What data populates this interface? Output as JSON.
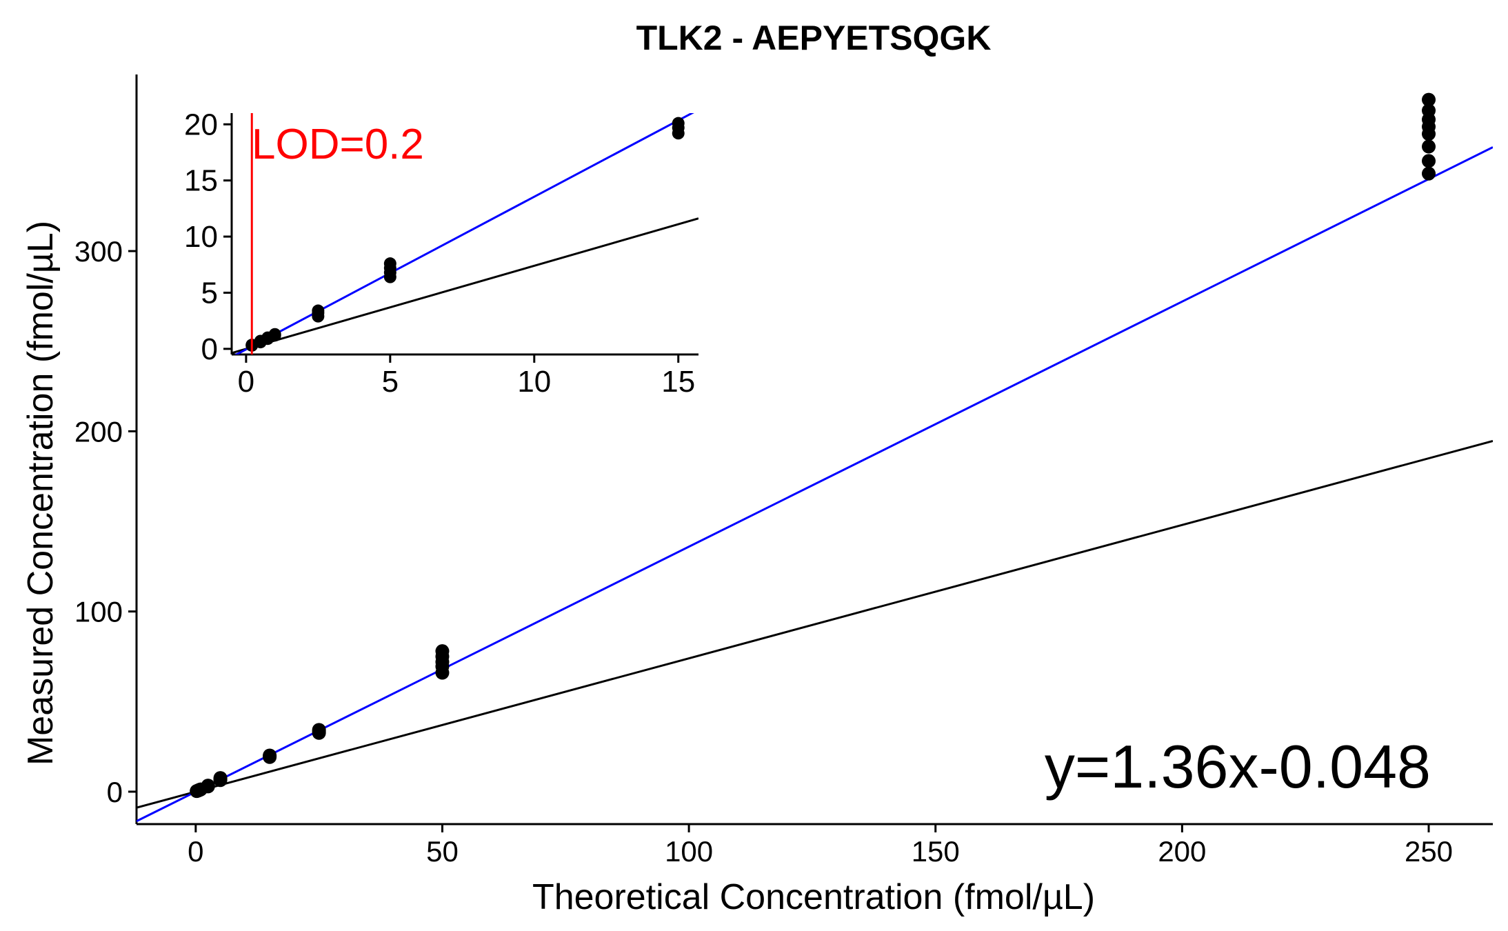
{
  "chart_data": {
    "type": "scatter",
    "title": "TLK2 - AEPYETSQGK",
    "xlabel": "Theoretical Concentration (fmol/µL)",
    "ylabel": "Measured Concentration (fmol/µL)",
    "xlim": [
      -12,
      263
    ],
    "ylim": [
      -18,
      398
    ],
    "x_ticks": [
      0,
      50,
      100,
      150,
      200,
      250
    ],
    "x_tick_labels": [
      "0",
      "50",
      "100",
      "150",
      "200",
      "250"
    ],
    "y_ticks": [
      0,
      100,
      200,
      300
    ],
    "y_tick_labels": [
      "0",
      "100",
      "200",
      "300"
    ],
    "grid": false,
    "points": {
      "x": [
        0.2,
        0.2,
        0.5,
        0.5,
        0.75,
        0.75,
        1,
        1,
        2.5,
        2.5,
        2.5,
        5,
        5,
        5,
        5,
        15,
        15,
        15,
        25,
        25,
        25,
        50,
        50,
        50,
        50,
        50,
        250,
        250,
        250,
        250,
        250,
        250,
        250,
        250
      ],
      "y": [
        0.3,
        0.35,
        0.6,
        0.7,
        0.9,
        1.0,
        1.2,
        1.3,
        2.9,
        3.2,
        3.4,
        6.4,
        6.8,
        7.2,
        7.6,
        19.2,
        19.7,
        20.1,
        32.6,
        33.4,
        34.3,
        66.0,
        69.5,
        72.0,
        75.0,
        78.0,
        343.0,
        350.0,
        358.0,
        365.0,
        369.0,
        373.0,
        378.0,
        384.0
      ],
      "color": "#000000"
    },
    "fit_line": {
      "slope": 1.36,
      "intercept": -0.048,
      "color": "#0000ff"
    },
    "identity_line": {
      "slope": 0.74,
      "intercept": 0,
      "color": "#000000"
    },
    "annotation": "y=1.36x-0.048",
    "inset": {
      "xlim": [
        -0.5,
        15.7
      ],
      "ylim": [
        -0.5,
        21
      ],
      "x_ticks": [
        0,
        5,
        10,
        15
      ],
      "x_tick_labels": [
        "0",
        "5",
        "10",
        "15"
      ],
      "y_ticks": [
        0,
        5,
        10,
        15,
        20
      ],
      "y_tick_labels": [
        "0",
        "5",
        "10",
        "15",
        "20"
      ],
      "lod_value": 0.2,
      "lod_label": "LOD=0.2",
      "lod_color": "#ff0000"
    }
  }
}
